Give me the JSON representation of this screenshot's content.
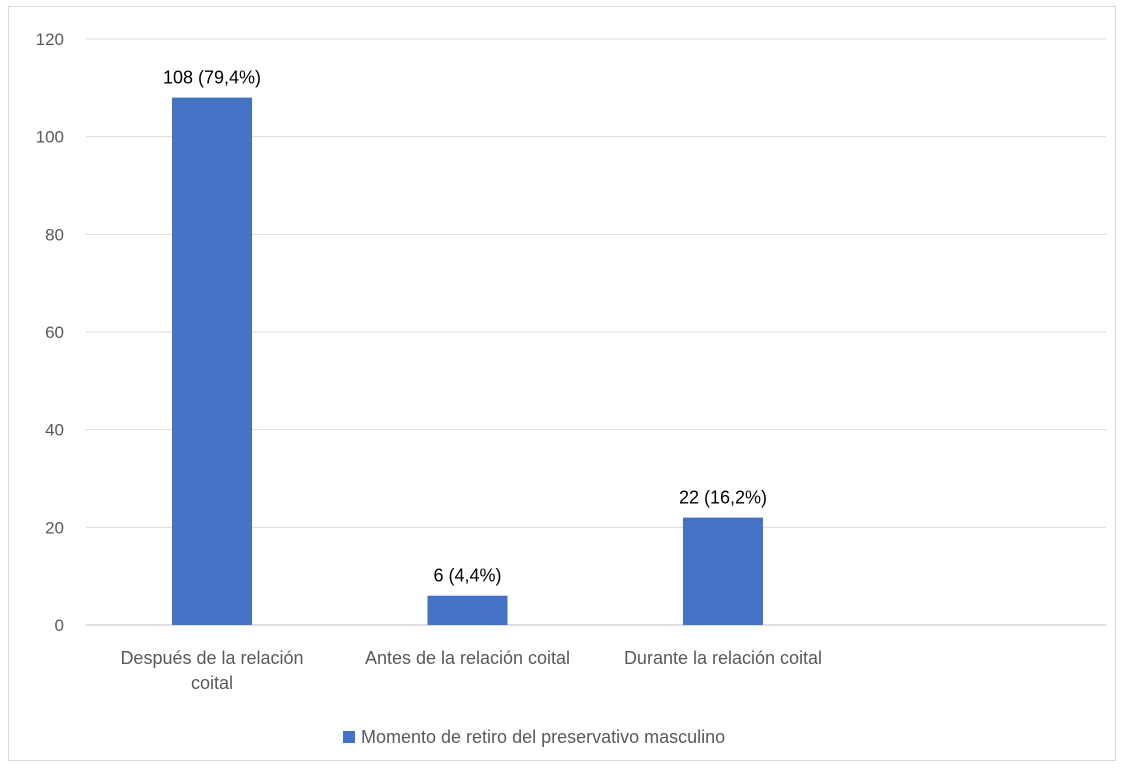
{
  "chart_data": {
    "type": "bar",
    "categories": [
      [
        "Después de la relación",
        "coital"
      ],
      [
        "Antes de la relación coital"
      ],
      [
        "Durante la relación coital"
      ]
    ],
    "series": [
      {
        "name": "Momento de retiro del preservativo masculino",
        "values": [
          108,
          6,
          22
        ],
        "data_labels": [
          "108 (79,4%)",
          "6 (4,4%)",
          "22 (16,2%)"
        ],
        "color": "#4472C4"
      }
    ],
    "yticks": [
      0,
      20,
      40,
      60,
      80,
      100,
      120
    ],
    "ylim": [
      0,
      120
    ],
    "grid": true,
    "legend_position": "bottom",
    "colors": {
      "bar": "#4472C4",
      "grid": "#d9d9d9",
      "axis": "#bfbfbf",
      "text": "#595959",
      "label": "#000000"
    }
  }
}
